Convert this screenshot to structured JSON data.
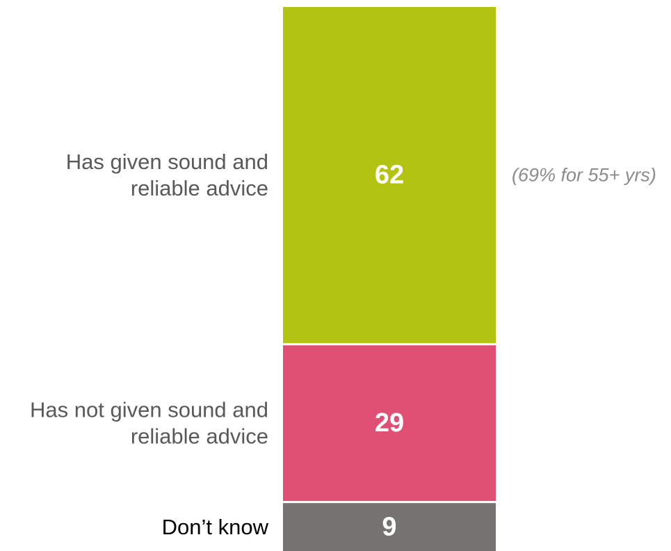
{
  "chart_data": {
    "type": "bar",
    "stacked": true,
    "orientation": "vertical",
    "categories": [
      "Has given sound and reliable advice",
      "Has not given sound and reliable advice",
      "Don’t know"
    ],
    "label_lines": [
      [
        "Has given sound and",
        "reliable advice"
      ],
      [
        "Has not given sound and",
        "reliable advice"
      ],
      [
        "Don’t know"
      ]
    ],
    "values": [
      62,
      29,
      9
    ],
    "colors": [
      "#b2c312",
      "#e05075",
      "#767271"
    ],
    "label_colors": [
      "#595959",
      "#595959",
      "#000000"
    ],
    "annotations": [
      {
        "category": "Has given sound and reliable advice",
        "text": "(69% for 55+ yrs)"
      }
    ],
    "ylim": [
      0,
      100
    ],
    "grid": false,
    "legend": "none"
  }
}
